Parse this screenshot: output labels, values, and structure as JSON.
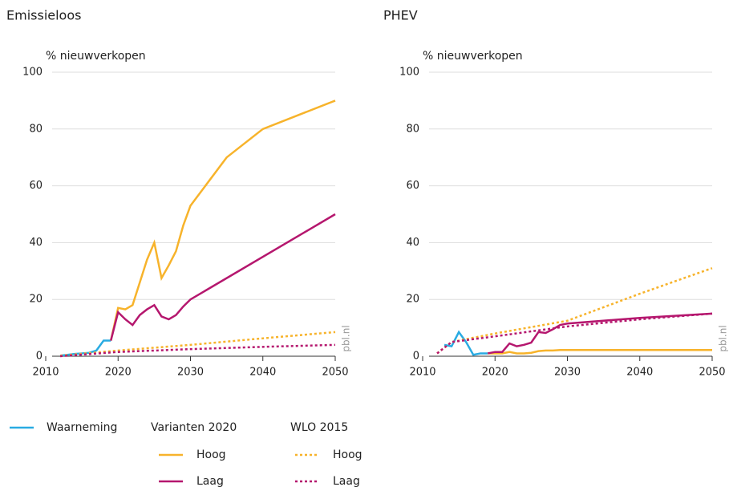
{
  "chart_data": [
    {
      "type": "line",
      "title": "Emissieloos",
      "ylabel": "% nieuwverkopen",
      "watermark": "pbl.nl",
      "xlim": [
        2010,
        2050
      ],
      "xticks": [
        2010,
        2020,
        2030,
        2040,
        2050
      ],
      "ylim": [
        0,
        100
      ],
      "yticks": [
        0,
        20,
        40,
        60,
        80,
        100
      ],
      "grid": true,
      "series": [
        {
          "name": "Waarneming",
          "color": "#29abe2",
          "dash": "solid",
          "x": [
            2012,
            2013,
            2014,
            2015,
            2016,
            2017,
            2018,
            2019
          ],
          "values": [
            0.2,
            0.5,
            0.8,
            1,
            1.2,
            2,
            5.5,
            5.5
          ]
        },
        {
          "name": "Hoog",
          "group": "Varianten 2020",
          "color": "#f7b32b",
          "dash": "solid",
          "x": [
            2019,
            2020,
            2021,
            2022,
            2023,
            2024,
            2025,
            2026,
            2027,
            2028,
            2029,
            2030,
            2035,
            2040,
            2050
          ],
          "values": [
            5.5,
            17,
            16.5,
            18,
            26,
            34,
            40,
            27.5,
            32,
            37,
            46,
            53,
            70,
            80,
            90
          ]
        },
        {
          "name": "Laag",
          "group": "Varianten 2020",
          "color": "#b5176e",
          "dash": "solid",
          "x": [
            2019,
            2020,
            2021,
            2022,
            2023,
            2024,
            2025,
            2026,
            2027,
            2028,
            2029,
            2030,
            2050
          ],
          "values": [
            5.5,
            15.5,
            13,
            11,
            14.5,
            16.5,
            18,
            14,
            13,
            14.5,
            17.5,
            20,
            50
          ]
        },
        {
          "name": "Hoog",
          "group": "WLO 2015",
          "color": "#f7b32b",
          "dash": "dotted",
          "x": [
            2012,
            2020,
            2030,
            2040,
            2050
          ],
          "values": [
            0.2,
            2,
            4,
            6.3,
            8.5
          ]
        },
        {
          "name": "Laag",
          "group": "WLO 2015",
          "color": "#b5176e",
          "dash": "dotted",
          "x": [
            2012,
            2020,
            2030,
            2040,
            2050
          ],
          "values": [
            0,
            1.5,
            2.5,
            3.3,
            4
          ]
        }
      ]
    },
    {
      "type": "line",
      "title": "PHEV",
      "ylabel": "% nieuwverkopen",
      "watermark": "pbl.nl",
      "xlim": [
        2010,
        2050
      ],
      "xticks": [
        2010,
        2020,
        2030,
        2040,
        2050
      ],
      "ylim": [
        0,
        100
      ],
      "yticks": [
        0,
        20,
        40,
        60,
        80,
        100
      ],
      "grid": true,
      "series": [
        {
          "name": "Waarneming",
          "color": "#29abe2",
          "dash": "solid",
          "x": [
            2013,
            2014,
            2015,
            2016,
            2017,
            2018,
            2019
          ],
          "values": [
            4,
            3.5,
            8.5,
            5,
            0.5,
            1,
            1
          ]
        },
        {
          "name": "Hoog",
          "group": "Varianten 2020",
          "color": "#f7b32b",
          "dash": "solid",
          "x": [
            2019,
            2020,
            2021,
            2022,
            2023,
            2024,
            2025,
            2026,
            2027,
            2028,
            2029,
            2030,
            2050
          ],
          "values": [
            1,
            1,
            1,
            1.5,
            1,
            1,
            1.2,
            1.8,
            2,
            2,
            2.2,
            2.2,
            2.2
          ]
        },
        {
          "name": "Laag",
          "group": "Varianten 2020",
          "color": "#b5176e",
          "dash": "solid",
          "x": [
            2019,
            2020,
            2021,
            2022,
            2023,
            2024,
            2025,
            2026,
            2027,
            2028,
            2029,
            2030,
            2040,
            2050
          ],
          "values": [
            1,
            1.5,
            1.5,
            4.5,
            3.5,
            4,
            4.8,
            8.5,
            8.2,
            9.5,
            11,
            11.5,
            13.5,
            15
          ]
        },
        {
          "name": "Hoog",
          "group": "WLO 2015",
          "color": "#f7b32b",
          "dash": "dotted",
          "x": [
            2012,
            2014,
            2020,
            2030,
            2040,
            2050
          ],
          "values": [
            1,
            5,
            8,
            12.5,
            22,
            31
          ]
        },
        {
          "name": "Laag",
          "group": "WLO 2015",
          "color": "#b5176e",
          "dash": "dotted",
          "x": [
            2012,
            2014,
            2020,
            2030,
            2040,
            2050
          ],
          "values": [
            1,
            5,
            7,
            10.5,
            13,
            15
          ]
        }
      ]
    }
  ]
}
